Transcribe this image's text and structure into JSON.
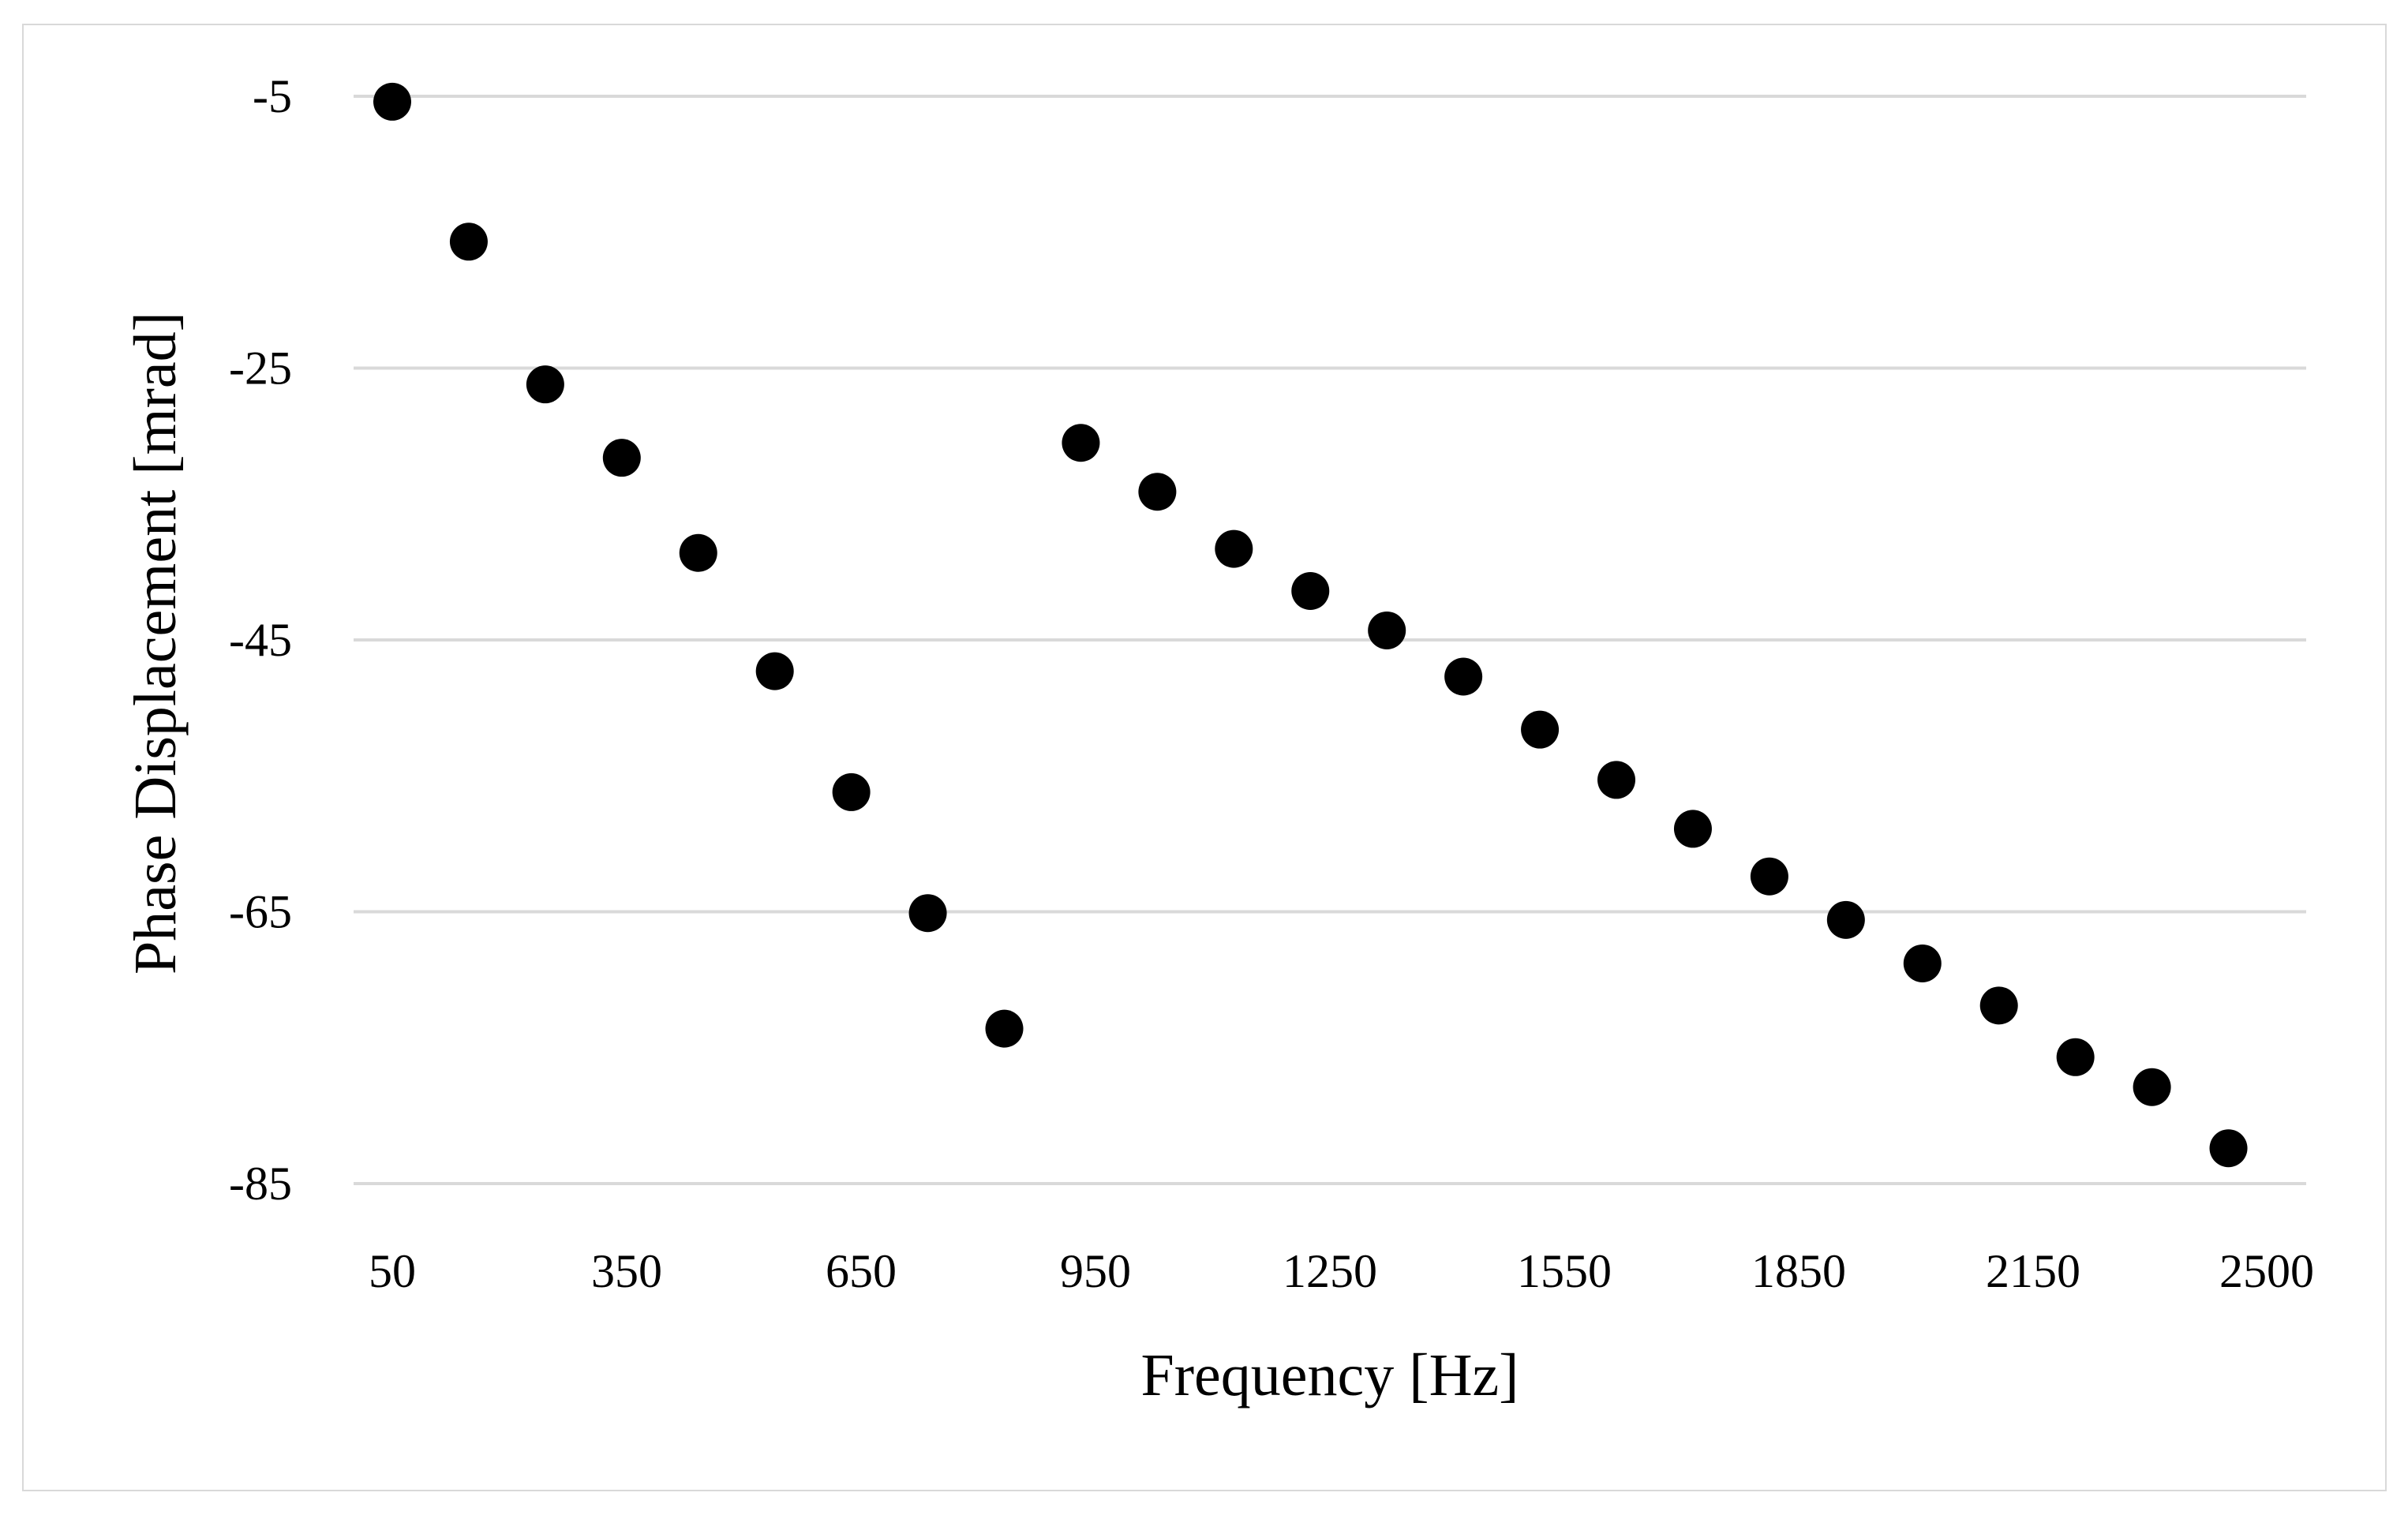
{
  "chart_data": {
    "type": "scatter",
    "title": "",
    "xlabel": "Frequency [Hz]",
    "ylabel": "Phase Displacement [mrad]",
    "x_tick_labels": [
      "50",
      "350",
      "650",
      "950",
      "1250",
      "1550",
      "1850",
      "2150",
      "2500"
    ],
    "y_tick_labels": [
      "-5",
      "-25",
      "-45",
      "-65",
      "-85"
    ],
    "y_ticks": [
      -5,
      -25,
      -45,
      -65,
      -85
    ],
    "ylim": [
      -85,
      -5
    ],
    "grid": "horizontal",
    "legend": "none",
    "marker_color": "#000000",
    "series": [
      {
        "points": [
          {
            "x": 50,
            "y": -5.4
          },
          {
            "x": 150,
            "y": -15.7
          },
          {
            "x": 250,
            "y": -26.2
          },
          {
            "x": 350,
            "y": -31.6
          },
          {
            "x": 450,
            "y": -38.6
          },
          {
            "x": 550,
            "y": -47.3
          },
          {
            "x": 650,
            "y": -56.2
          },
          {
            "x": 750,
            "y": -65.1
          },
          {
            "x": 850,
            "y": -73.6
          },
          {
            "x": 950,
            "y": -30.5
          },
          {
            "x": 1050,
            "y": -34.1
          },
          {
            "x": 1150,
            "y": -38.3
          },
          {
            "x": 1250,
            "y": -41.4
          },
          {
            "x": 1350,
            "y": -44.3
          },
          {
            "x": 1450,
            "y": -47.7
          },
          {
            "x": 1550,
            "y": -51.6
          },
          {
            "x": 1650,
            "y": -55.3
          },
          {
            "x": 1750,
            "y": -58.9
          },
          {
            "x": 1850,
            "y": -62.4
          },
          {
            "x": 1950,
            "y": -65.6
          },
          {
            "x": 2050,
            "y": -68.8
          },
          {
            "x": 2150,
            "y": -71.9
          },
          {
            "x": 2250,
            "y": -75.7
          },
          {
            "x": 2350,
            "y": -77.9
          },
          {
            "x": 2450,
            "y": -82.4
          }
        ]
      }
    ]
  }
}
